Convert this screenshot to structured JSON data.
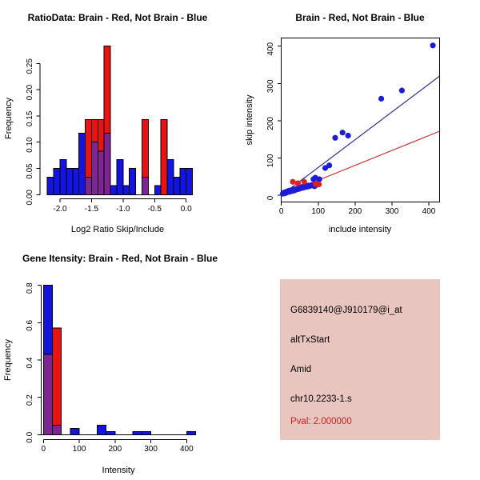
{
  "colors": {
    "hist_blue": "#1414e0",
    "hist_red": "#e81414",
    "overlap_purple": "#7d2592",
    "point_blue": "#1c1cd8",
    "point_red": "#dd2020",
    "line_blue": "#3030aa",
    "line_red": "#cc3333",
    "axis_black": "#000000",
    "info_bg": "#e8c5be",
    "pval_red": "#cc2222"
  },
  "chart_data": [
    {
      "id": "ratio_hist",
      "type": "bar",
      "title": "RatioData: Brain - Red, Not Brain - Blue",
      "xlabel": "Log2 Ratio Skip/Include",
      "ylabel": "Frequency",
      "bin_width": 0.1,
      "xlim": [
        -2.25,
        0.15
      ],
      "ylim": [
        0,
        0.285
      ],
      "grid": false,
      "xticks": [
        {
          "v": -2.0,
          "label": "-2.0"
        },
        {
          "v": -1.5,
          "label": "-1.5"
        },
        {
          "v": -1.0,
          "label": "-1.0"
        },
        {
          "v": -0.5,
          "label": "-0.5"
        },
        {
          "v": 0.0,
          "label": "0.0"
        }
      ],
      "yticks": [
        {
          "v": 0.0,
          "label": "0.00"
        },
        {
          "v": 0.05,
          "label": "0.05"
        },
        {
          "v": 0.1,
          "label": "0.10"
        },
        {
          "v": 0.15,
          "label": "0.15"
        },
        {
          "v": 0.2,
          "label": "0.20"
        },
        {
          "v": 0.25,
          "label": "0.25"
        }
      ],
      "series": [
        {
          "name": "Not Brain",
          "color_key": "hist_blue",
          "bins": [
            {
              "x": -2.2,
              "f": 0.033
            },
            {
              "x": -2.1,
              "f": 0.05
            },
            {
              "x": -2.0,
              "f": 0.067
            },
            {
              "x": -1.9,
              "f": 0.05
            },
            {
              "x": -1.8,
              "f": 0.05
            },
            {
              "x": -1.7,
              "f": 0.117
            },
            {
              "x": -1.6,
              "f": 0.033
            },
            {
              "x": -1.5,
              "f": 0.1
            },
            {
              "x": -1.4,
              "f": 0.083
            },
            {
              "x": -1.3,
              "f": 0.117
            },
            {
              "x": -1.2,
              "f": 0.017
            },
            {
              "x": -1.1,
              "f": 0.067
            },
            {
              "x": -1.0,
              "f": 0.017
            },
            {
              "x": -0.9,
              "f": 0.05
            },
            {
              "x": -0.7,
              "f": 0.033
            },
            {
              "x": -0.5,
              "f": 0.017
            },
            {
              "x": -0.3,
              "f": 0.067
            },
            {
              "x": -0.2,
              "f": 0.033
            },
            {
              "x": -0.1,
              "f": 0.05
            },
            {
              "x": 0.0,
              "f": 0.05
            }
          ]
        },
        {
          "name": "Brain",
          "color_key": "hist_red",
          "bins": [
            {
              "x": -1.6,
              "f": 0.143
            },
            {
              "x": -1.5,
              "f": 0.143
            },
            {
              "x": -1.4,
              "f": 0.143
            },
            {
              "x": -1.3,
              "f": 0.283
            },
            {
              "x": -0.7,
              "f": 0.143
            },
            {
              "x": -0.4,
              "f": 0.143
            }
          ]
        },
        {
          "name": "Overlap",
          "color_key": "overlap_purple",
          "bins": [
            {
              "x": -1.6,
              "f": 0.033
            },
            {
              "x": -1.5,
              "f": 0.1
            },
            {
              "x": -1.4,
              "f": 0.083
            },
            {
              "x": -1.3,
              "f": 0.117
            },
            {
              "x": -0.7,
              "f": 0.033
            }
          ]
        }
      ]
    },
    {
      "id": "scatter",
      "type": "scatter",
      "title": "Brain - Red, Not Brain - Blue",
      "xlabel": "include intensity",
      "ylabel": "skip intensity",
      "xlim": [
        0,
        429
      ],
      "ylim": [
        -18,
        422
      ],
      "grid": false,
      "xticks": [
        {
          "v": 0,
          "label": "0"
        },
        {
          "v": 100,
          "label": "100"
        },
        {
          "v": 200,
          "label": "200"
        },
        {
          "v": 300,
          "label": "300"
        },
        {
          "v": 400,
          "label": "400"
        }
      ],
      "yticks": [
        {
          "v": 0,
          "label": "0"
        },
        {
          "v": 100,
          "label": "100"
        },
        {
          "v": 200,
          "label": "200"
        },
        {
          "v": 300,
          "label": "300"
        },
        {
          "v": 400,
          "label": "400"
        }
      ],
      "series": [
        {
          "name": "Not Brain",
          "color_key": "point_blue",
          "points": [
            [
              4,
              4
            ],
            [
              6,
              6
            ],
            [
              8,
              5
            ],
            [
              10,
              8
            ],
            [
              12,
              6
            ],
            [
              14,
              9
            ],
            [
              16,
              8
            ],
            [
              18,
              11
            ],
            [
              20,
              9
            ],
            [
              22,
              12
            ],
            [
              24,
              10
            ],
            [
              26,
              13
            ],
            [
              28,
              11
            ],
            [
              30,
              14
            ],
            [
              32,
              12
            ],
            [
              34,
              15
            ],
            [
              36,
              13
            ],
            [
              38,
              16
            ],
            [
              40,
              15
            ],
            [
              42,
              17
            ],
            [
              44,
              16
            ],
            [
              46,
              18
            ],
            [
              48,
              17
            ],
            [
              50,
              20
            ],
            [
              53,
              19
            ],
            [
              56,
              22
            ],
            [
              59,
              20
            ],
            [
              62,
              23
            ],
            [
              65,
              22
            ],
            [
              68,
              25
            ],
            [
              71,
              23
            ],
            [
              74,
              26
            ],
            [
              78,
              25
            ],
            [
              82,
              27
            ],
            [
              86,
              26
            ],
            [
              90,
              24
            ],
            [
              95,
              28
            ],
            [
              100,
              30
            ],
            [
              87,
              43
            ],
            [
              92,
              47
            ],
            [
              103,
              43
            ],
            [
              119,
              73
            ],
            [
              130,
              80
            ],
            [
              146,
              154
            ],
            [
              166,
              168
            ],
            [
              181,
              160
            ],
            [
              271,
              259
            ],
            [
              327,
              281
            ],
            [
              411,
              402
            ]
          ]
        },
        {
          "name": "Brain",
          "color_key": "point_red",
          "points": [
            [
              31,
              36
            ],
            [
              45,
              32
            ],
            [
              62,
              36
            ],
            [
              93,
              30
            ],
            [
              102,
              29
            ]
          ]
        }
      ],
      "lines": [
        {
          "name": "not-brain-fit",
          "color_key": "line_blue",
          "slope": 0.745,
          "intercept": 0
        },
        {
          "name": "brain-fit",
          "color_key": "line_red",
          "slope": 0.4,
          "intercept": 0
        }
      ]
    },
    {
      "id": "gene_hist",
      "type": "bar",
      "title": "Gene Itensity: Brain - Red, Not Brain - Blue",
      "xlabel": "Intensity",
      "ylabel": "Frequency",
      "bin_width": 25,
      "xlim": [
        0,
        425
      ],
      "ylim": [
        0,
        0.8
      ],
      "grid": false,
      "xticks": [
        {
          "v": 0,
          "label": "0"
        },
        {
          "v": 100,
          "label": "100"
        },
        {
          "v": 200,
          "label": "200"
        },
        {
          "v": 300,
          "label": "300"
        },
        {
          "v": 400,
          "label": "400"
        }
      ],
      "yticks": [
        {
          "v": 0.0,
          "label": "0.0"
        },
        {
          "v": 0.2,
          "label": "0.2"
        },
        {
          "v": 0.4,
          "label": "0.4"
        },
        {
          "v": 0.6,
          "label": "0.6"
        },
        {
          "v": 0.8,
          "label": "0.8"
        }
      ],
      "series": [
        {
          "name": "Not Brain",
          "color_key": "hist_blue",
          "bins": [
            {
              "x": 0,
              "f": 0.8
            },
            {
              "x": 25,
              "f": 0.05
            },
            {
              "x": 75,
              "f": 0.033
            },
            {
              "x": 150,
              "f": 0.05
            },
            {
              "x": 175,
              "f": 0.017
            },
            {
              "x": 250,
              "f": 0.017
            },
            {
              "x": 275,
              "f": 0.017
            },
            {
              "x": 400,
              "f": 0.017
            }
          ]
        },
        {
          "name": "Brain",
          "color_key": "hist_red",
          "bins": [
            {
              "x": 0,
              "f": 0.429
            },
            {
              "x": 25,
              "f": 0.571
            }
          ]
        },
        {
          "name": "Overlap",
          "color_key": "overlap_purple",
          "bins": [
            {
              "x": 0,
              "f": 0.429
            },
            {
              "x": 25,
              "f": 0.05
            }
          ]
        }
      ]
    }
  ],
  "info_panel": {
    "lines": [
      {
        "text": "G6839140@J910179@i_at"
      },
      {
        "text": "altTxStart"
      },
      {
        "text": "Amid"
      },
      {
        "text": "chr10.2233-1.s"
      },
      {
        "text": "Pval: 2.000000"
      }
    ]
  }
}
